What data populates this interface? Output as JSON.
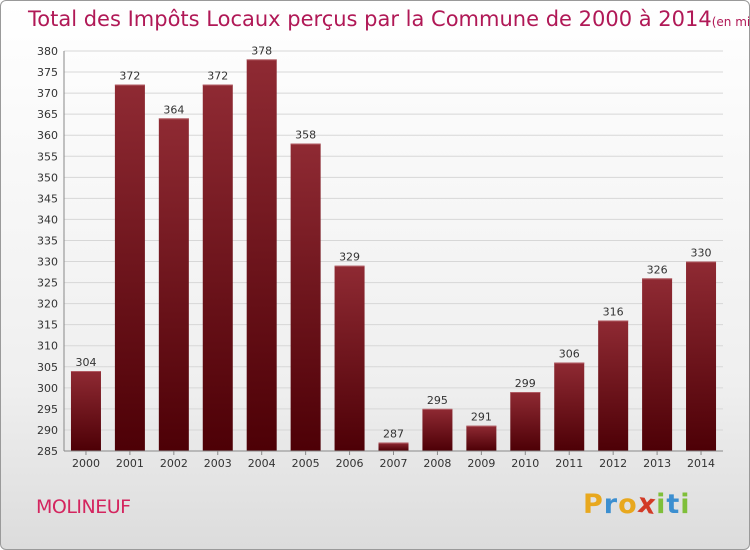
{
  "chart_data": {
    "type": "bar",
    "title": "Total des Impôts Locaux perçus par la Commune de 2000 à 2014",
    "title_unit": "(en milliers d'€)",
    "categories": [
      "2000",
      "2001",
      "2002",
      "2003",
      "2004",
      "2005",
      "2006",
      "2007",
      "2008",
      "2009",
      "2010",
      "2011",
      "2012",
      "2013",
      "2014"
    ],
    "values": [
      304,
      372,
      364,
      372,
      378,
      358,
      329,
      287,
      295,
      291,
      299,
      306,
      316,
      326,
      330
    ],
    "ylim": [
      285,
      380
    ],
    "yticks": [
      285,
      290,
      295,
      300,
      305,
      310,
      315,
      320,
      325,
      330,
      335,
      340,
      345,
      350,
      355,
      360,
      365,
      370,
      375,
      380
    ],
    "grid": true,
    "bar_color": "#7a1018"
  },
  "commune": "MOLINEUF",
  "logo": {
    "letters": [
      "P",
      "r",
      "o",
      "x",
      "i",
      "t",
      "i"
    ],
    "colors": [
      "#e8a81e",
      "#3c8fd0",
      "#e8a81e",
      "#d23a26",
      "#7fbf3a",
      "#3c8fd0",
      "#7fbf3a"
    ]
  }
}
